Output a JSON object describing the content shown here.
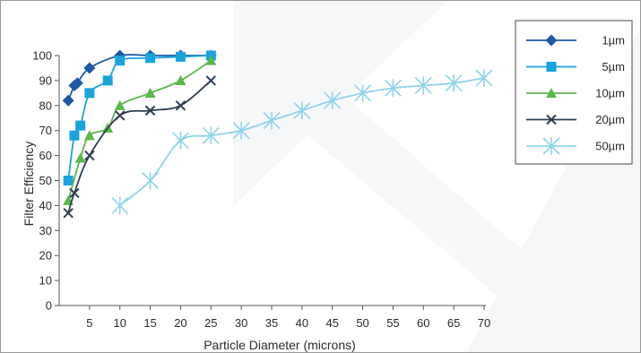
{
  "chart_data": {
    "type": "line",
    "title": "",
    "xlabel": "Particle Diameter (microns)",
    "ylabel": "Filter Efficiency",
    "xlim": [
      0,
      70
    ],
    "ylim": [
      0,
      100
    ],
    "x_ticks": [
      5,
      10,
      15,
      20,
      25,
      30,
      35,
      40,
      45,
      50,
      55,
      60,
      65,
      70
    ],
    "y_ticks": [
      0,
      10,
      20,
      30,
      40,
      50,
      60,
      70,
      80,
      90,
      100
    ],
    "grid": false,
    "legend_position": "top-right",
    "series": [
      {
        "name": "1µm",
        "color": "#1d5aa3",
        "marker": "diamond",
        "points": [
          [
            1.5,
            82
          ],
          [
            2.5,
            88
          ],
          [
            3,
            89
          ],
          [
            5,
            95
          ],
          [
            10,
            100
          ],
          [
            15,
            100
          ],
          [
            20,
            100
          ],
          [
            25,
            100
          ]
        ]
      },
      {
        "name": "5µm",
        "color": "#1aa3dc",
        "marker": "square",
        "points": [
          [
            1.5,
            50
          ],
          [
            2.5,
            68
          ],
          [
            3.5,
            72
          ],
          [
            5,
            85
          ],
          [
            8,
            90
          ],
          [
            10,
            98
          ],
          [
            15,
            99
          ],
          [
            20,
            99.5
          ],
          [
            25,
            100
          ]
        ]
      },
      {
        "name": "10µm",
        "color": "#5cb84c",
        "marker": "triangle",
        "points": [
          [
            1.5,
            42
          ],
          [
            3.5,
            59
          ],
          [
            5,
            68
          ],
          [
            8,
            71
          ],
          [
            10,
            80
          ],
          [
            15,
            85
          ],
          [
            20,
            90
          ],
          [
            25,
            98
          ]
        ]
      },
      {
        "name": "20µm",
        "color": "#2d3e54",
        "marker": "x",
        "points": [
          [
            1.5,
            37
          ],
          [
            2.5,
            45
          ],
          [
            5,
            60
          ],
          [
            10,
            76
          ],
          [
            15,
            78
          ],
          [
            20,
            80
          ],
          [
            25,
            90
          ]
        ]
      },
      {
        "name": "50µm",
        "color": "#8fd3ec",
        "marker": "asterisk",
        "points": [
          [
            10,
            40
          ],
          [
            15,
            50
          ],
          [
            20,
            66
          ],
          [
            25,
            68
          ],
          [
            30,
            70
          ],
          [
            35,
            74
          ],
          [
            40,
            78
          ],
          [
            45,
            82
          ],
          [
            50,
            85
          ],
          [
            55,
            87
          ],
          [
            60,
            88
          ],
          [
            65,
            89
          ],
          [
            70,
            91
          ]
        ]
      }
    ]
  }
}
